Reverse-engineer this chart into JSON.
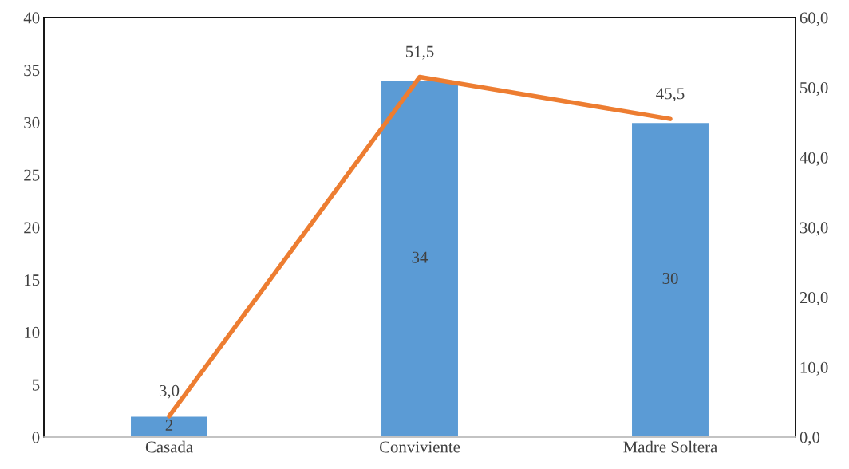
{
  "chart_data": {
    "type": "bar",
    "categories": [
      "Casada",
      "Conviviente",
      "Madre Soltera"
    ],
    "series": [
      {
        "color": "#5b9bd5",
        "values": [
          2,
          34,
          30
        ],
        "value_labels": [
          "2",
          "34",
          "30"
        ]
      },
      {
        "type": "line",
        "axis": "y2",
        "color": "#ed7d31",
        "values": [
          3.0,
          51.5,
          45.5
        ],
        "value_labels": [
          "3,0",
          "51,5",
          "45,5"
        ]
      }
    ],
    "ylim": [
      0,
      40
    ],
    "yticks": [
      0,
      5,
      10,
      15,
      20,
      25,
      30,
      35,
      40
    ],
    "y2lim": [
      0,
      60
    ],
    "y2ticks": [
      {
        "value": 0,
        "label": "0,0"
      },
      {
        "value": 10,
        "label": "10,0"
      },
      {
        "value": 20,
        "label": "20,0"
      },
      {
        "value": 30,
        "label": "30,0"
      },
      {
        "value": 40,
        "label": "40,0"
      },
      {
        "value": 50,
        "label": "50,0"
      },
      {
        "value": 60,
        "label": "60,0"
      }
    ],
    "grid": false,
    "marker": "none",
    "line_style": "solid"
  }
}
